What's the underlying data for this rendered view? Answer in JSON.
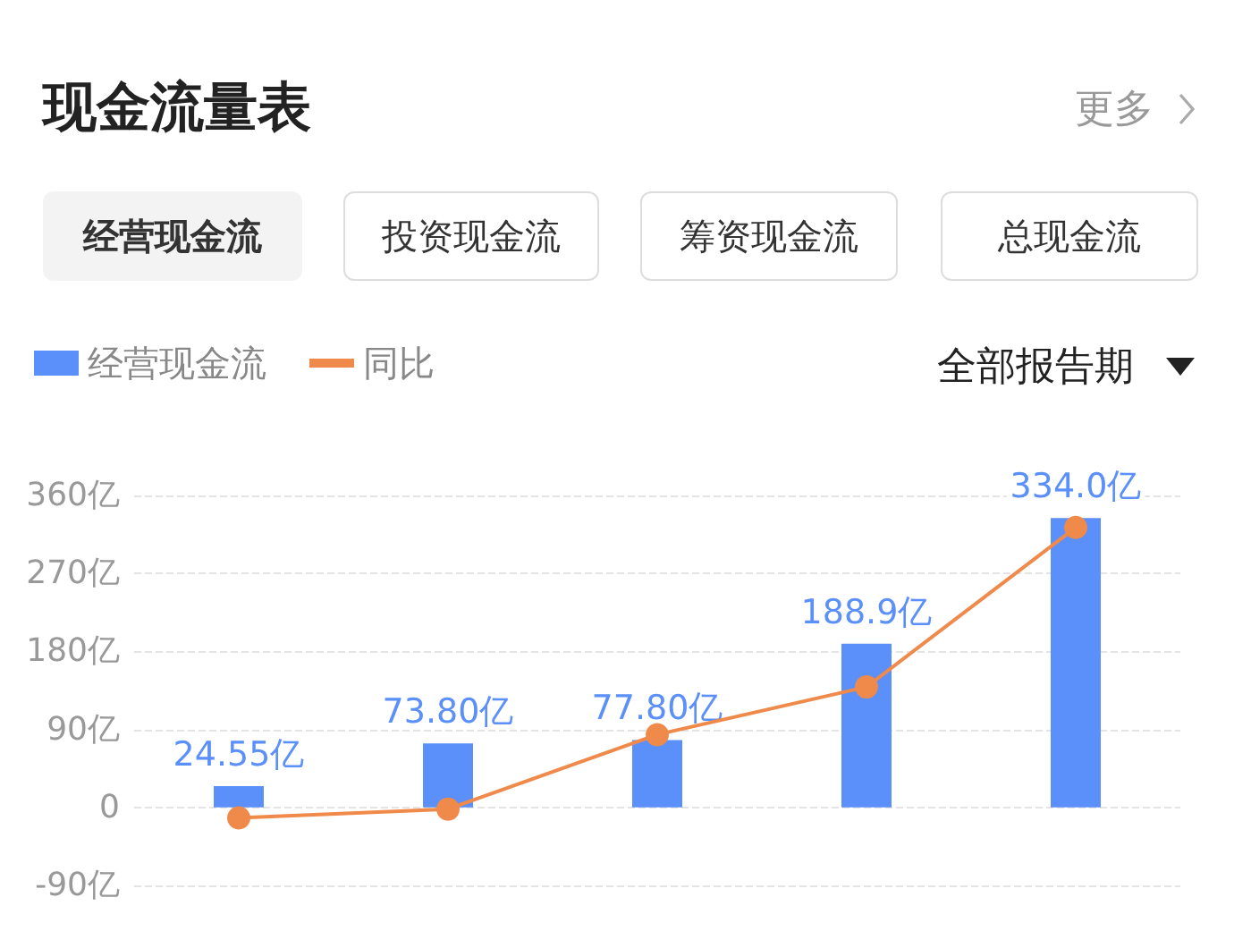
{
  "chart_data": {
    "type": "bar",
    "title": "现金流量表",
    "annotations": [
      "更多",
      "经营现金流",
      "投资现金流",
      "筹资现金流",
      "总现金流",
      "全部报告期"
    ],
    "categories": [
      null,
      null,
      null,
      null,
      null
    ],
    "series": [
      {
        "name": "经营现金流",
        "color": "#5b8ff9",
        "values": [
          24.55,
          73.8,
          77.8,
          188.9,
          334.0
        ],
        "value_labels": [
          "24.55亿",
          "73.80亿",
          "77.80亿",
          "188.9亿",
          "334.0亿"
        ]
      },
      {
        "name": "同比",
        "type": "line",
        "color": "#f08a4b",
        "values": [
          -12,
          -2,
          84,
          139,
          323
        ],
        "marker": "circle"
      }
    ],
    "ylim": [
      -90,
      360
    ],
    "yticks": [
      {
        "value": -90,
        "label": "-90亿"
      },
      0,
      {
        "value": 90,
        "label": "90亿"
      },
      {
        "value": 180,
        "label": "180亿"
      },
      {
        "value": 270,
        "label": "270亿"
      },
      {
        "value": 360,
        "label": "360亿"
      }
    ],
    "tick_labels": "y",
    "grid": "y",
    "legend": "top left"
  }
}
